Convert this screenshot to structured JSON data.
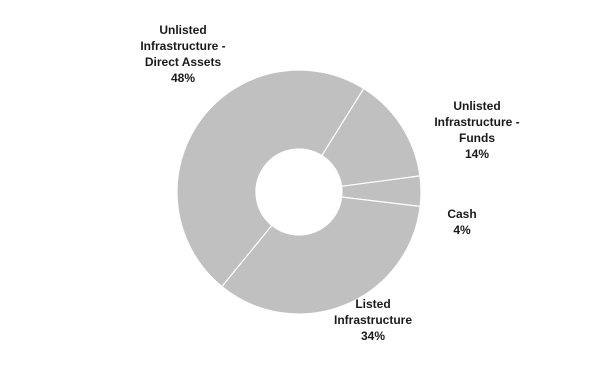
{
  "chart_data": {
    "type": "pie",
    "variant": "donut",
    "title": "",
    "slices": [
      {
        "label_lines": [
          "Unlisted",
          "Infrastructure -",
          "Direct Assets"
        ],
        "percent_label": "48%",
        "value": 48
      },
      {
        "label_lines": [
          "Unlisted",
          "Infrastructure -",
          "Funds"
        ],
        "percent_label": "14%",
        "value": 14
      },
      {
        "label_lines": [
          "Cash"
        ],
        "percent_label": "4%",
        "value": 4
      },
      {
        "label_lines": [
          "Listed",
          "Infrastructure"
        ],
        "percent_label": "34%",
        "value": 34
      }
    ],
    "legend": "none",
    "slice_color": "#c0c0c0",
    "separator_color": "#ffffff"
  }
}
